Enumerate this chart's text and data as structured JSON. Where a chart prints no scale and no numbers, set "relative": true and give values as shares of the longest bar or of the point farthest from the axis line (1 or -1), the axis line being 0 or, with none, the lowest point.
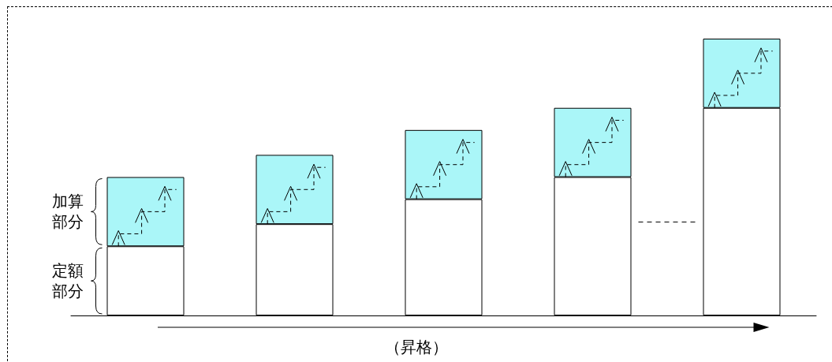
{
  "chart_data": {
    "type": "bar",
    "stacked": true,
    "relative": true,
    "xlabel": "（昇格）",
    "categories": [
      null,
      null,
      null,
      null,
      null
    ],
    "series": [
      {
        "name": "定額部分",
        "color": "#ffffff",
        "values": [
          0.25,
          0.33,
          0.42,
          0.5,
          0.75
        ]
      },
      {
        "name": "加算部分",
        "color": "#aaf6f8",
        "values": [
          0.25,
          0.25,
          0.25,
          0.25,
          0.25
        ]
      }
    ],
    "legend": false
  }
}
